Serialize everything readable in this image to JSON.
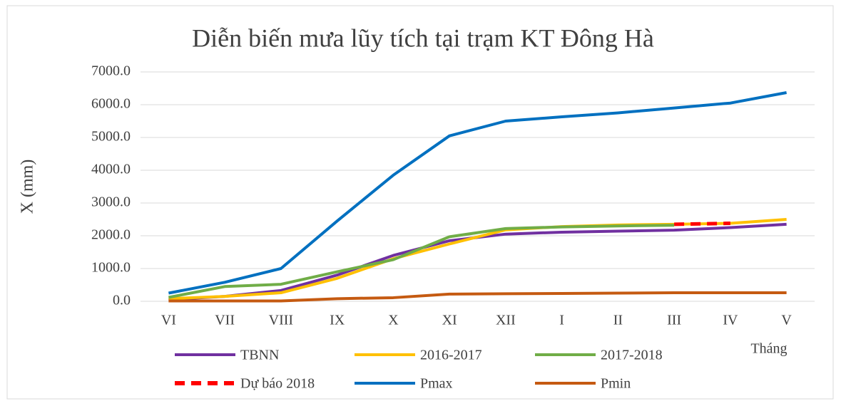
{
  "chart_data": {
    "type": "line",
    "title": "Diễn biến mưa lũy tích tại trạm KT Đông Hà",
    "y_label": "X (mm)",
    "x_label": "Tháng",
    "categories": [
      "VI",
      "VII",
      "VIII",
      "IX",
      "X",
      "XI",
      "XII",
      "I",
      "II",
      "III",
      "IV",
      "V"
    ],
    "ylim": [
      0,
      7000
    ],
    "yticks": [
      {
        "value": 0,
        "label": "0.0"
      },
      {
        "value": 1000,
        "label": "1000.0"
      },
      {
        "value": 2000,
        "label": "2000.0"
      },
      {
        "value": 3000,
        "label": "3000.0"
      },
      {
        "value": 4000,
        "label": "4000.0"
      },
      {
        "value": 5000,
        "label": "5000.0"
      },
      {
        "value": 6000,
        "label": "6000.0"
      },
      {
        "value": 7000,
        "label": "7000.0"
      }
    ],
    "grid": true,
    "legend": "bottom",
    "series": [
      {
        "name": "TBNN",
        "color": "#7030a0",
        "values": [
          50,
          150,
          330,
          800,
          1400,
          1850,
          2050,
          2110,
          2140,
          2170,
          2250,
          2350
        ]
      },
      {
        "name": "2016-2017",
        "color": "#ffc000",
        "values": [
          80,
          150,
          260,
          700,
          1300,
          1750,
          2180,
          2280,
          2330,
          2350,
          2380,
          2500
        ]
      },
      {
        "name": "2017-2018",
        "color": "#70ad47",
        "values": [
          120,
          450,
          520,
          900,
          1270,
          1970,
          2220,
          2270,
          2300,
          2320,
          null,
          null
        ]
      },
      {
        "name": "Dự báo 2018",
        "color": "#ff0000",
        "dashed": true,
        "values": [
          null,
          null,
          null,
          null,
          null,
          null,
          null,
          null,
          null,
          2350,
          2380,
          null
        ]
      },
      {
        "name": "Pmax",
        "color": "#0070c0",
        "values": [
          250,
          580,
          1000,
          2450,
          3850,
          5050,
          5500,
          5630,
          5750,
          5900,
          6050,
          6370
        ]
      },
      {
        "name": "Pmin",
        "color": "#c55a11",
        "values": [
          10,
          10,
          10,
          80,
          110,
          220,
          230,
          240,
          250,
          260,
          260,
          260
        ]
      }
    ]
  }
}
